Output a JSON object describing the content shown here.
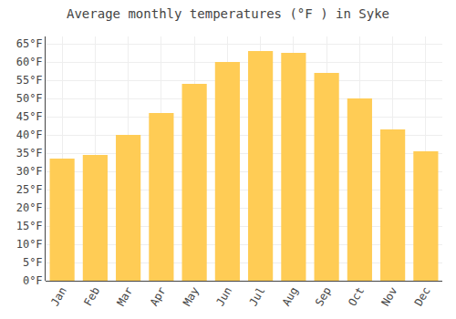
{
  "chart_data": {
    "type": "bar",
    "title": "Average monthly temperatures (°F ) in Syke",
    "categories": [
      "Jan",
      "Feb",
      "Mar",
      "Apr",
      "May",
      "Jun",
      "Jul",
      "Aug",
      "Sep",
      "Oct",
      "Nov",
      "Dec"
    ],
    "values": [
      33.5,
      34.5,
      40.0,
      46.0,
      54.0,
      60.0,
      63.0,
      62.5,
      57.0,
      50.0,
      41.5,
      35.5
    ],
    "color": "#FFCC55",
    "ylim": [
      0,
      67
    ],
    "yticks": [
      {
        "value": 0,
        "label": "0°F"
      },
      {
        "value": 5,
        "label": "5°F"
      },
      {
        "value": 10,
        "label": "10°F"
      },
      {
        "value": 15,
        "label": "15°F"
      },
      {
        "value": 20,
        "label": "20°F"
      },
      {
        "value": 25,
        "label": "25°F"
      },
      {
        "value": 30,
        "label": "30°F"
      },
      {
        "value": 35,
        "label": "35°F"
      },
      {
        "value": 40,
        "label": "40°F"
      },
      {
        "value": 45,
        "label": "45°F"
      },
      {
        "value": 50,
        "label": "50°F"
      },
      {
        "value": 55,
        "label": "55°F"
      },
      {
        "value": 60,
        "label": "60°F"
      },
      {
        "value": 65,
        "label": "65°F"
      }
    ],
    "grid": true
  }
}
